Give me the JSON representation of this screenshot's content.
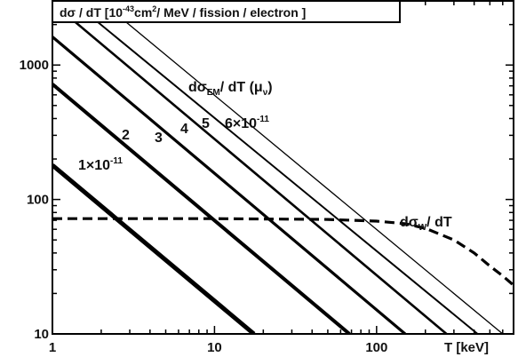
{
  "chart_data": {
    "type": "line",
    "title": "dσ / dT  [10⁻⁴³cm²/ MeV / fission / electron ]",
    "x_scale": "log",
    "y_scale": "log",
    "xlim": [
      1,
      700
    ],
    "ylim": [
      10,
      3000
    ],
    "xlabel": "T  [keV]",
    "ylabel": "",
    "x_ticks": [
      {
        "value": 1,
        "label": "1"
      },
      {
        "value": 10,
        "label": "10"
      },
      {
        "value": 100,
        "label": "100"
      }
    ],
    "y_ticks": [
      {
        "value": 10,
        "label": "10"
      },
      {
        "value": 100,
        "label": "100"
      },
      {
        "value": 1000,
        "label": "1000"
      }
    ],
    "grid": false,
    "series": [
      {
        "name": "1×10⁻¹¹",
        "style": "solid",
        "x": [
          1,
          17.5
        ],
        "y": [
          180,
          10
        ]
      },
      {
        "name": "2",
        "style": "solid",
        "x": [
          1,
          68
        ],
        "y": [
          720,
          10
        ]
      },
      {
        "name": "3",
        "style": "solid",
        "x": [
          1,
          150
        ],
        "y": [
          1620,
          10
        ]
      },
      {
        "name": "4",
        "style": "solid",
        "x": [
          1,
          270
        ],
        "y": [
          2900,
          10
        ]
      },
      {
        "name": "5",
        "style": "solid",
        "x": [
          1.32,
          420
        ],
        "y": [
          3000,
          10
        ]
      },
      {
        "name": "6×10⁻¹¹",
        "style": "solid",
        "x": [
          1.98,
          600
        ],
        "y": [
          3000,
          10
        ]
      },
      {
        "name": "dσW/ dT",
        "style": "dashed",
        "x": [
          1,
          10,
          50,
          100,
          150,
          200,
          300,
          400,
          500,
          600,
          700
        ],
        "y": [
          72,
          72,
          71,
          69,
          66,
          61,
          50,
          40,
          32,
          27,
          23
        ]
      }
    ],
    "annotations": {
      "em_label": "dσEM/ dT (μν)",
      "weak_label": "dσW/ dT",
      "labels": [
        "1×10⁻¹¹",
        "2",
        "3",
        "4",
        "5",
        "6×10⁻¹¹"
      ]
    }
  }
}
